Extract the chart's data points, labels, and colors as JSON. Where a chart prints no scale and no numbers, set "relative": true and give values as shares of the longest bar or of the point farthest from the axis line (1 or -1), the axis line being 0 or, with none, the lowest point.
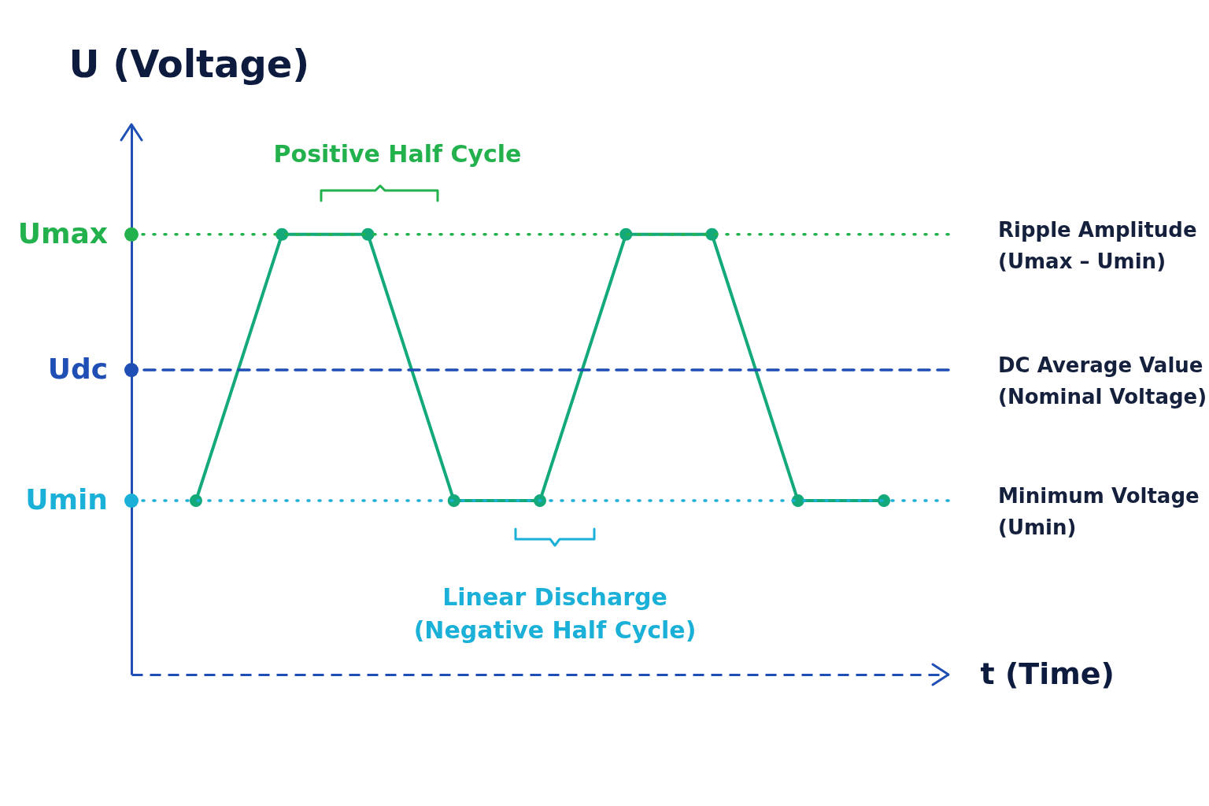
{
  "chart_data": {
    "type": "line",
    "xlabel": "t (Time)",
    "ylabel": "U (Voltage)",
    "categories": [
      null,
      null,
      null,
      null,
      null,
      null,
      null,
      null,
      null
    ],
    "series": [
      {
        "color": "#14a97a",
        "values": [
          0.395,
          1,
          1,
          0.395,
          0.395,
          1,
          1,
          0.395,
          0.395
        ]
      }
    ],
    "relative": true,
    "marker": "circle",
    "line_style": "solid",
    "grid": false,
    "ref_lines": [
      {
        "axis": "y",
        "value": 1,
        "label": "Ripple Amplitude\n(Umax – Umin)",
        "color": "#22b14c",
        "line_style": "dotted"
      },
      {
        "axis": "y",
        "value": 0.692,
        "label": "DC Average Value\n(Nominal Voltage)",
        "color": "#1f4fb5",
        "line_style": "dashed"
      },
      {
        "axis": "y",
        "value": 0.395,
        "label": "Minimum Voltage\n(Umin)",
        "color": "#1ab0d8",
        "line_style": "dotted"
      }
    ],
    "annotations": [
      "Positive Half Cycle",
      "Linear Discharge\n(Negative Half Cycle)",
      "Umax",
      "Udc",
      "Umin"
    ]
  }
}
